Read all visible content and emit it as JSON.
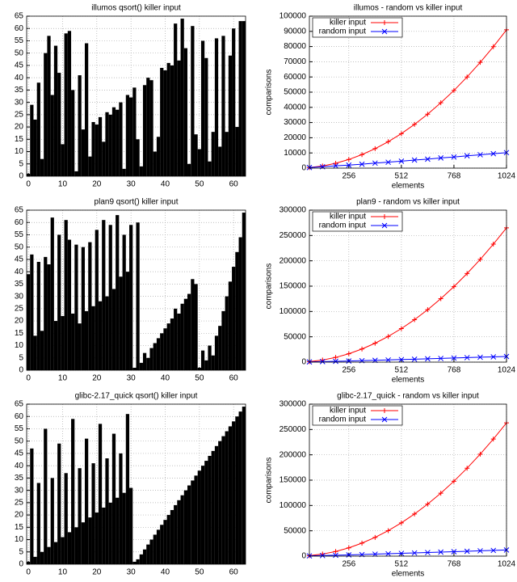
{
  "chart_data": [
    {
      "type": "bar",
      "title": "illumos qsort() killer input",
      "color": "#000000",
      "grid": true,
      "x": [
        0,
        1,
        2,
        3,
        4,
        5,
        6,
        7,
        8,
        9,
        10,
        11,
        12,
        13,
        14,
        15,
        16,
        17,
        18,
        19,
        20,
        21,
        22,
        23,
        24,
        25,
        26,
        27,
        28,
        29,
        30,
        31,
        32,
        33,
        34,
        35,
        36,
        37,
        38,
        39,
        40,
        41,
        42,
        43,
        44,
        45,
        46,
        47,
        48,
        49,
        50,
        51,
        52,
        53,
        54,
        55,
        56,
        57,
        58,
        59,
        60,
        61,
        62,
        63
      ],
      "values": [
        1,
        29,
        23,
        38,
        7,
        50,
        57,
        33,
        53,
        42,
        13,
        58,
        59,
        35,
        2,
        41,
        19,
        54,
        8,
        22,
        21,
        24,
        14,
        26,
        25,
        28,
        27,
        30,
        3,
        33,
        32,
        36,
        15,
        4,
        37,
        40,
        39,
        10,
        16,
        44,
        43,
        46,
        45,
        62,
        47,
        64,
        52,
        5,
        61,
        17,
        11,
        55,
        48,
        6,
        18,
        56,
        12,
        57,
        18,
        49,
        60,
        20,
        63,
        63
      ],
      "xlim": [
        -0.5,
        63.5
      ],
      "xticks": [
        0,
        10,
        20,
        30,
        40,
        50,
        60
      ],
      "ylim": [
        0,
        65
      ],
      "yticks": [
        0,
        5,
        10,
        15,
        20,
        25,
        30,
        35,
        40,
        45,
        50,
        55,
        60,
        65
      ]
    },
    {
      "type": "line",
      "title": "illumos - random vs killer input",
      "x_label": "elements",
      "y_label": "comparisons",
      "grid": true,
      "legend": "top-left",
      "x": [
        64,
        128,
        192,
        256,
        320,
        384,
        448,
        512,
        576,
        640,
        704,
        768,
        832,
        896,
        960,
        1024
      ],
      "series": [
        {
          "name": "killer input",
          "color": "#ff0000",
          "marker": "+",
          "values": [
            400,
            1400,
            3200,
            5700,
            8900,
            12800,
            17400,
            22700,
            28800,
            35500,
            43000,
            51100,
            60000,
            69600,
            79900,
            91000
          ]
        },
        {
          "name": "random input",
          "color": "#0000ff",
          "marker": "x",
          "values": [
            400,
            900,
            1500,
            2000,
            2600,
            3300,
            3900,
            4600,
            5300,
            5900,
            6700,
            7300,
            8100,
            8800,
            9500,
            10200
          ]
        }
      ],
      "xlim": [
        64,
        1024
      ],
      "xticks": [
        256,
        512,
        768,
        1024
      ],
      "ylim": [
        0,
        100000
      ],
      "yticks": [
        0,
        10000,
        20000,
        30000,
        40000,
        50000,
        60000,
        70000,
        80000,
        90000,
        100000
      ]
    },
    {
      "type": "bar",
      "title": "plan9 qsort() killer input",
      "color": "#000000",
      "grid": true,
      "x": [
        0,
        1,
        2,
        3,
        4,
        5,
        6,
        7,
        8,
        9,
        10,
        11,
        12,
        13,
        14,
        15,
        16,
        17,
        18,
        19,
        20,
        21,
        22,
        23,
        24,
        25,
        26,
        27,
        28,
        29,
        30,
        31,
        32,
        33,
        34,
        35,
        36,
        37,
        38,
        39,
        40,
        41,
        42,
        43,
        44,
        45,
        46,
        47,
        48,
        49,
        50,
        51,
        52,
        53,
        54,
        55,
        56,
        57,
        58,
        59,
        60,
        61,
        62,
        63
      ],
      "values": [
        39,
        47,
        14,
        44,
        16,
        46,
        43,
        62,
        20,
        55,
        22,
        61,
        53,
        23,
        51,
        19,
        50,
        24,
        52,
        26,
        57,
        28,
        61,
        30,
        59,
        33,
        63,
        38,
        55,
        40,
        59,
        1,
        60,
        3,
        7,
        5,
        9,
        11,
        13,
        15,
        17,
        19,
        21,
        25,
        23,
        27,
        29,
        31,
        37,
        35,
        1,
        8,
        4,
        10,
        6,
        14,
        18,
        24,
        30,
        36,
        42,
        48,
        54,
        64
      ],
      "xlim": [
        -0.5,
        63.5
      ],
      "xticks": [
        0,
        10,
        20,
        30,
        40,
        50,
        60
      ],
      "ylim": [
        0,
        65
      ],
      "yticks": [
        0,
        5,
        10,
        15,
        20,
        25,
        30,
        35,
        40,
        45,
        50,
        55,
        60,
        65
      ]
    },
    {
      "type": "line",
      "title": "plan9 - random vs killer input",
      "x_label": "elements",
      "y_label": "comparisons",
      "grid": true,
      "legend": "top-left",
      "x": [
        64,
        128,
        192,
        256,
        320,
        384,
        448,
        512,
        576,
        640,
        704,
        768,
        832,
        896,
        960,
        1024
      ],
      "series": [
        {
          "name": "killer input",
          "color": "#ff0000",
          "marker": "+",
          "values": [
            1000,
            4100,
            9300,
            16600,
            25900,
            37300,
            50700,
            66200,
            83800,
            103500,
            125200,
            149000,
            174900,
            202800,
            232900,
            265000
          ]
        },
        {
          "name": "random input",
          "color": "#0000ff",
          "marker": "x",
          "values": [
            400,
            1000,
            1600,
            2200,
            2900,
            3600,
            4300,
            5100,
            5800,
            6600,
            7300,
            8100,
            8900,
            9700,
            10400,
            11200
          ]
        }
      ],
      "xlim": [
        64,
        1024
      ],
      "xticks": [
        256,
        512,
        768,
        1024
      ],
      "ylim": [
        0,
        300000
      ],
      "yticks": [
        0,
        50000,
        100000,
        150000,
        200000,
        250000,
        300000
      ]
    },
    {
      "type": "bar",
      "title": "glibc-2.17_quick qsort() killer input",
      "color": "#000000",
      "grid": true,
      "x": [
        0,
        1,
        2,
        3,
        4,
        5,
        6,
        7,
        8,
        9,
        10,
        11,
        12,
        13,
        14,
        15,
        16,
        17,
        18,
        19,
        20,
        21,
        22,
        23,
        24,
        25,
        26,
        27,
        28,
        29,
        30,
        31,
        32,
        33,
        34,
        35,
        36,
        37,
        38,
        39,
        40,
        41,
        42,
        43,
        44,
        45,
        46,
        47,
        48,
        49,
        50,
        51,
        52,
        53,
        54,
        55,
        56,
        57,
        58,
        59,
        60,
        61,
        62,
        63
      ],
      "values": [
        1,
        47,
        3,
        33,
        5,
        55,
        7,
        35,
        9,
        49,
        11,
        37,
        13,
        59,
        15,
        39,
        17,
        51,
        19,
        41,
        21,
        57,
        23,
        43,
        25,
        53,
        27,
        45,
        29,
        61,
        31,
        1,
        2,
        4,
        6,
        8,
        10,
        12,
        14,
        16,
        18,
        20,
        22,
        24,
        26,
        28,
        30,
        32,
        34,
        36,
        38,
        40,
        42,
        44,
        46,
        48,
        50,
        52,
        54,
        56,
        58,
        60,
        62,
        64
      ],
      "xlim": [
        -0.5,
        63.5
      ],
      "xticks": [
        0,
        10,
        20,
        30,
        40,
        50,
        60
      ],
      "ylim": [
        0,
        65
      ],
      "yticks": [
        0,
        5,
        10,
        15,
        20,
        25,
        30,
        35,
        40,
        45,
        50,
        55,
        60,
        65
      ]
    },
    {
      "type": "line",
      "title": "glibc-2.17_quick - random vs killer input",
      "x_label": "elements",
      "y_label": "comparisons",
      "grid": true,
      "legend": "top-left",
      "x": [
        64,
        128,
        192,
        256,
        320,
        384,
        448,
        512,
        576,
        640,
        704,
        768,
        832,
        896,
        960,
        1024
      ],
      "series": [
        {
          "name": "killer input",
          "color": "#ff0000",
          "marker": "+",
          "values": [
            1000,
            4100,
            9200,
            16400,
            25700,
            37000,
            50300,
            65700,
            83200,
            102700,
            124200,
            147900,
            173600,
            201300,
            231100,
            263000
          ]
        },
        {
          "name": "random input",
          "color": "#0000ff",
          "marker": "x",
          "values": [
            500,
            1100,
            1700,
            2400,
            3100,
            3900,
            4700,
            5500,
            6300,
            7100,
            8000,
            8800,
            9600,
            10500,
            11300,
            12200
          ]
        }
      ],
      "xlim": [
        64,
        1024
      ],
      "xticks": [
        256,
        512,
        768,
        1024
      ],
      "ylim": [
        0,
        300000
      ],
      "yticks": [
        0,
        50000,
        100000,
        150000,
        200000,
        250000,
        300000
      ]
    }
  ]
}
